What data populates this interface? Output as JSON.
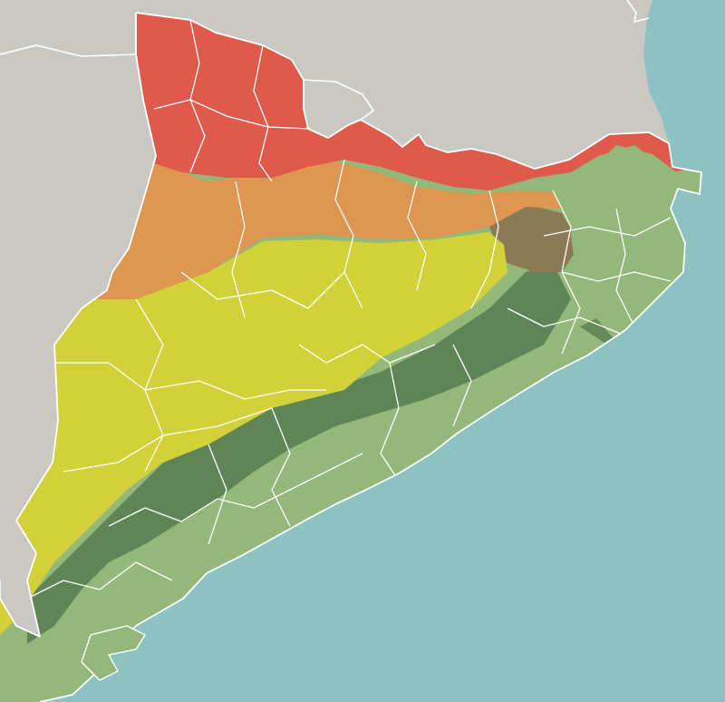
{
  "map": {
    "colors": {
      "land_outside": "#c9c8c3",
      "sea": "#8cc2c1",
      "zone_red": "#e05a4c",
      "zone_orange": "#de9650",
      "zone_yellow": "#d2d13a",
      "zone_light_green": "#93b879",
      "zone_dark_green": "#5f8556",
      "zone_brown": "#8a7a55",
      "border": "#ffffff"
    },
    "zones": [
      {
        "id": "high-mountain",
        "color_key": "zone_red"
      },
      {
        "id": "pre-pyrenees",
        "color_key": "zone_orange"
      },
      {
        "id": "central-plain",
        "color_key": "zone_yellow"
      },
      {
        "id": "coastal-lowland",
        "color_key": "zone_light_green"
      },
      {
        "id": "coastal-ranges",
        "color_key": "zone_dark_green"
      }
    ]
  }
}
